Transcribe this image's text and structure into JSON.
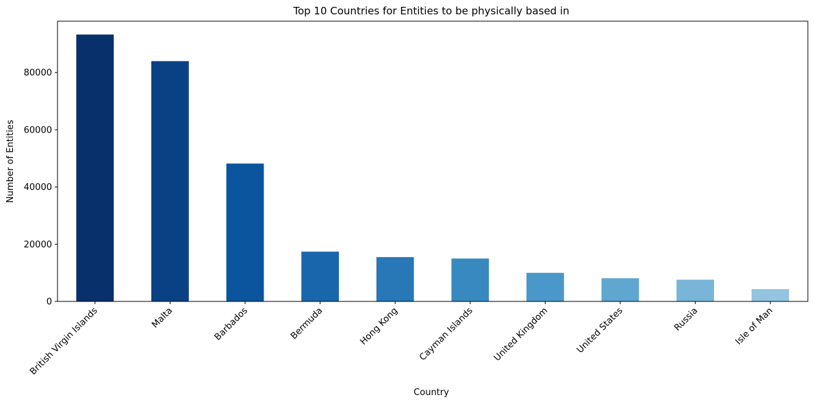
{
  "chart_data": {
    "type": "bar",
    "title": "Top 10 Countries for Entities to be physically based in",
    "xlabel": "Country",
    "ylabel": "Number of Entities",
    "categories": [
      "British Virgin Islands",
      "Malta",
      "Barbados",
      "Bermuda",
      "Hong Kong",
      "Cayman Islands",
      "United Kingdom",
      "United States",
      "Russia",
      "Isle of Man"
    ],
    "values": [
      93300,
      84000,
      48200,
      17400,
      15500,
      15000,
      10000,
      8100,
      7600,
      4300
    ],
    "colors": [
      "#08306b",
      "#0a4185",
      "#0b559f",
      "#1966ad",
      "#2878b8",
      "#3989c1",
      "#4a98c9",
      "#5fa6d1",
      "#79b5d9",
      "#94c4df"
    ],
    "ylim": [
      0,
      97965
    ],
    "yticks": [
      0,
      20000,
      40000,
      60000,
      80000
    ],
    "ytick_labels": [
      "0",
      "20000",
      "40000",
      "60000",
      "80000"
    ],
    "grid": false,
    "legend": "none"
  }
}
